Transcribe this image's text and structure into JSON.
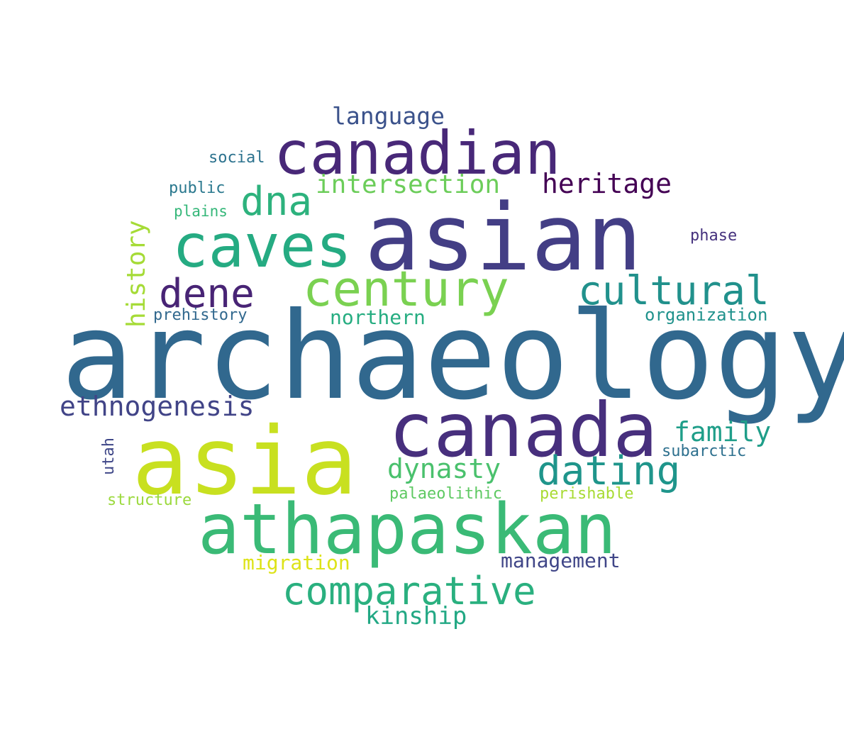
{
  "words": [
    {
      "id": "archaeology",
      "text": "archaeology",
      "color": "#31688e"
    },
    {
      "id": "asian",
      "text": "asian",
      "color": "#433e85"
    },
    {
      "id": "asia",
      "text": "asia",
      "color": "#c8e020"
    },
    {
      "id": "canada",
      "text": "canada",
      "color": "#472f7d"
    },
    {
      "id": "canadian",
      "text": "canadian",
      "color": "#482878"
    },
    {
      "id": "athapaskan",
      "text": "athapaskan",
      "color": "#3aba76"
    },
    {
      "id": "caves",
      "text": "caves",
      "color": "#25ab82"
    },
    {
      "id": "century",
      "text": "century",
      "color": "#7ad151"
    },
    {
      "id": "cultural",
      "text": "cultural",
      "color": "#21918c"
    },
    {
      "id": "dene",
      "text": "dene",
      "color": "#482475"
    },
    {
      "id": "comparative",
      "text": "comparative",
      "color": "#2ab07f"
    },
    {
      "id": "dna",
      "text": "dna",
      "color": "#2db27d"
    },
    {
      "id": "dating",
      "text": "dating",
      "color": "#1f958b"
    },
    {
      "id": "heritage",
      "text": "heritage",
      "color": "#440154"
    },
    {
      "id": "intersection",
      "text": "intersection",
      "color": "#6ccd5a"
    },
    {
      "id": "ethnogenesis",
      "text": "ethnogenesis",
      "color": "#414487"
    },
    {
      "id": "dynasty",
      "text": "dynasty",
      "color": "#4ac16d"
    },
    {
      "id": "family",
      "text": "family",
      "color": "#1f9e89"
    },
    {
      "id": "language",
      "text": "language",
      "color": "#3b528b"
    },
    {
      "id": "kinship",
      "text": "kinship",
      "color": "#22a884"
    },
    {
      "id": "history",
      "text": "history",
      "color": "#a5db36"
    },
    {
      "id": "northern",
      "text": "northern",
      "color": "#26ad81"
    },
    {
      "id": "management",
      "text": "management",
      "color": "#404688"
    },
    {
      "id": "migration",
      "text": "migration",
      "color": "#dde318"
    },
    {
      "id": "social",
      "text": "social",
      "color": "#2c728e"
    },
    {
      "id": "public",
      "text": "public",
      "color": "#2a788e"
    },
    {
      "id": "plains",
      "text": "plains",
      "color": "#35b779"
    },
    {
      "id": "phase",
      "text": "phase",
      "color": "#46327e"
    },
    {
      "id": "prehistory",
      "text": "prehistory",
      "color": "#31688e"
    },
    {
      "id": "organization",
      "text": "organization",
      "color": "#20928c"
    },
    {
      "id": "subarctic",
      "text": "subarctic",
      "color": "#2d708e"
    },
    {
      "id": "utah",
      "text": "utah",
      "color": "#3f4788"
    },
    {
      "id": "palaeolithic",
      "text": "palaeolithic",
      "color": "#5ec962"
    },
    {
      "id": "perishable",
      "text": "perishable",
      "color": "#a8db34"
    },
    {
      "id": "structure",
      "text": "structure",
      "color": "#9bd93c"
    }
  ]
}
